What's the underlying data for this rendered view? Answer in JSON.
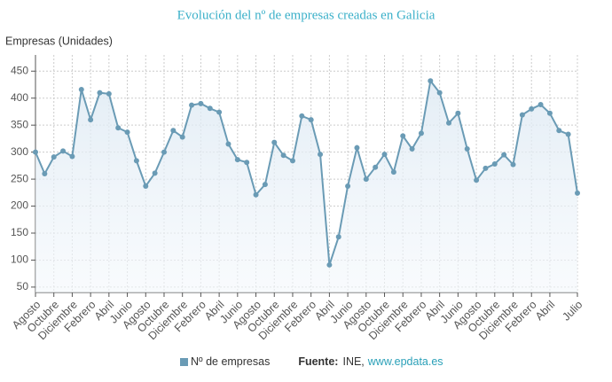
{
  "chart_data": {
    "type": "line",
    "title": "Evolución del nº de empresas creadas en Galicia",
    "y_label": "Empresas (Unidades)",
    "categories": [
      "Agosto",
      null,
      "Octubre",
      null,
      "Diciembre",
      null,
      "Febrero",
      null,
      "Abril",
      null,
      "Junio",
      null,
      "Agosto",
      null,
      "Octubre",
      null,
      "Diciembre",
      null,
      "Febrero",
      null,
      "Abril",
      null,
      "Junio",
      null,
      "Agosto",
      null,
      "Octubre",
      null,
      "Diciembre",
      null,
      "Febrero",
      null,
      "Abril",
      null,
      "Junio",
      null,
      "Agosto",
      null,
      "Octubre",
      null,
      "Diciembre",
      null,
      "Febrero",
      null,
      "Abril",
      null,
      "Junio",
      null,
      "Agosto",
      null,
      "Octubre",
      null,
      "Diciembre",
      null,
      "Febrero",
      null,
      "Abril",
      null,
      null,
      "Julio"
    ],
    "series": [
      {
        "name": "Nº de empresas",
        "color": "#6a9bb5",
        "values": [
          300,
          260,
          291,
          302,
          292,
          416,
          360,
          410,
          408,
          345,
          337,
          284,
          237,
          261,
          300,
          340,
          328,
          387,
          390,
          381,
          374,
          315,
          286,
          281,
          221,
          240,
          318,
          294,
          284,
          367,
          360,
          296,
          91,
          143,
          237,
          308,
          250,
          272,
          296,
          263,
          330,
          306,
          335,
          432,
          410,
          354,
          372,
          306,
          248,
          270,
          278,
          295,
          277,
          369,
          380,
          388,
          372,
          340,
          333,
          224
        ]
      }
    ],
    "ylim": [
      40,
      480
    ],
    "yticks": [
      50,
      100,
      150,
      200,
      250,
      300,
      350,
      400,
      450
    ],
    "grid": true,
    "source_label": "Fuente:",
    "source": "INE,",
    "source_link": "www.epdata.es"
  }
}
